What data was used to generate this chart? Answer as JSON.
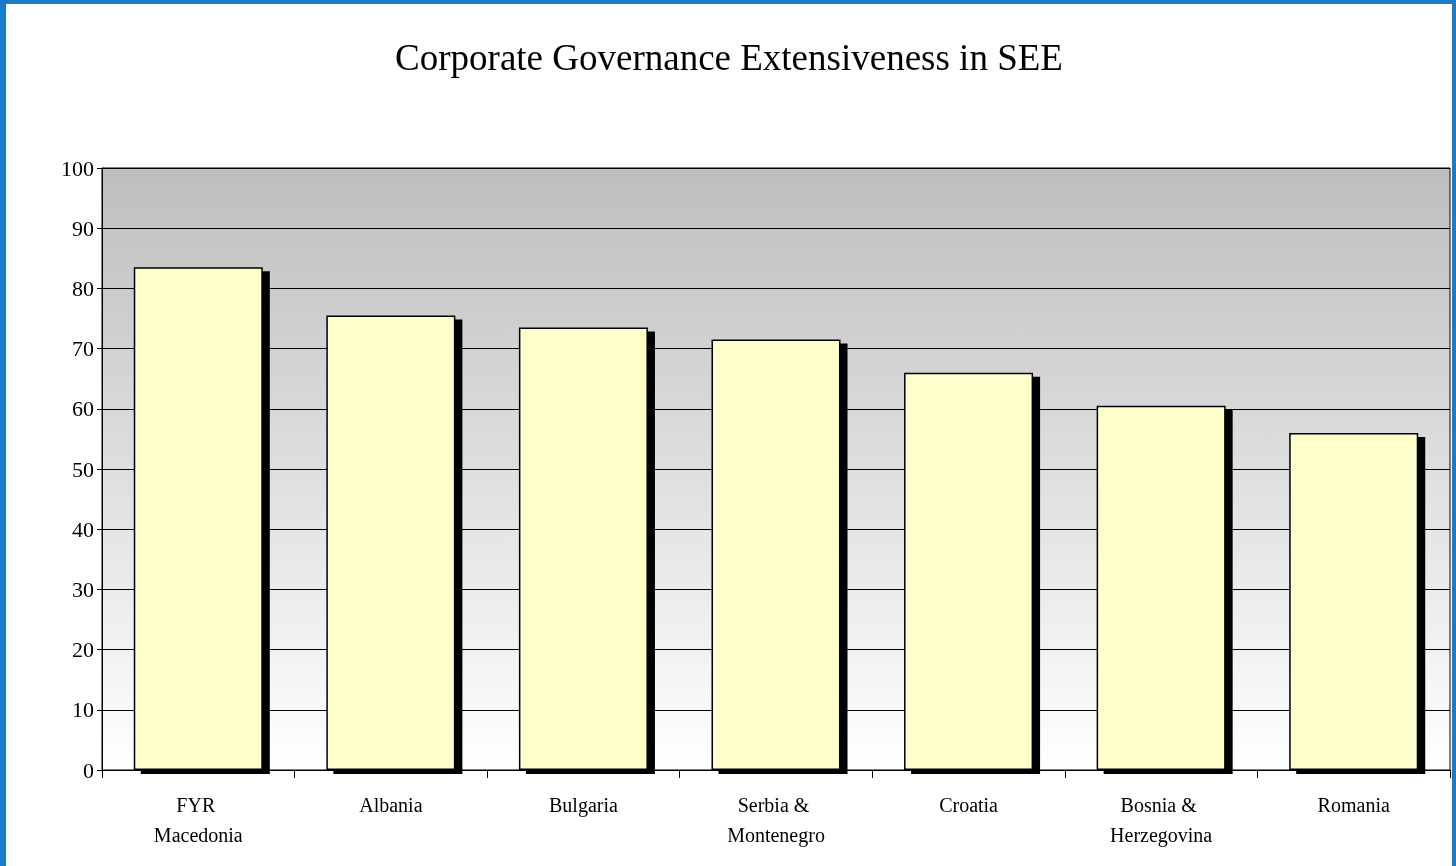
{
  "chart_data": {
    "type": "bar",
    "title": "Corporate Governance Extensiveness in SEE",
    "categories": [
      "FYR Macedonia",
      "Albania",
      "Bulgaria",
      "Serbia & Montenegro",
      "Croatia",
      "Bosnia & Herzegovina",
      "Romania"
    ],
    "values": [
      83.5,
      75.5,
      73.5,
      71.5,
      66,
      60.5,
      56
    ],
    "color": "#ffffcc",
    "ylim": [
      0,
      100
    ],
    "yticks": [
      0,
      10,
      20,
      30,
      40,
      50,
      60,
      70,
      80,
      90,
      100
    ],
    "grid": "y"
  }
}
